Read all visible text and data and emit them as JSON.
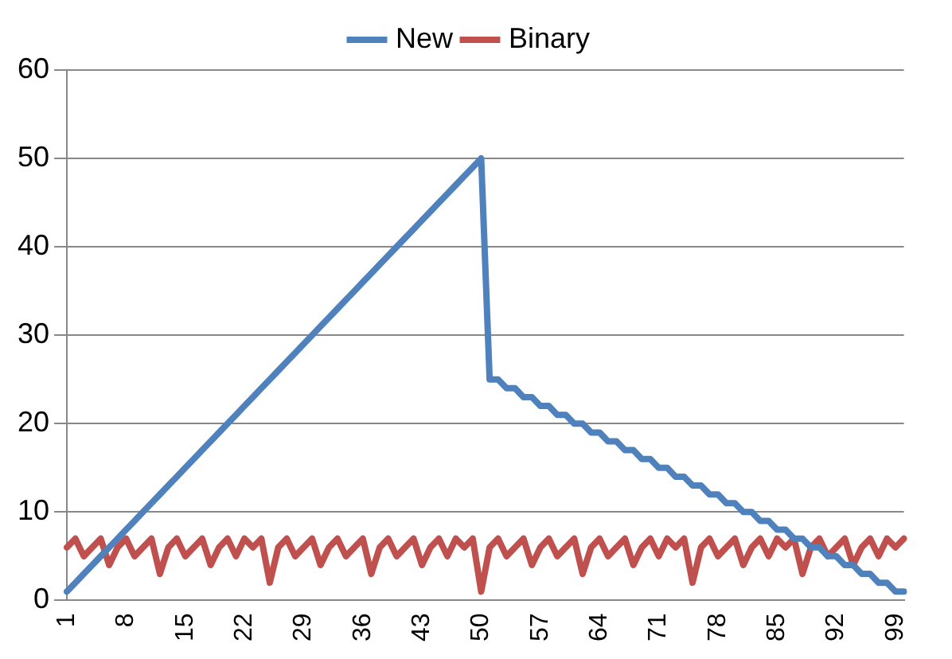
{
  "chart_data": {
    "type": "line",
    "categories": [
      "1",
      null,
      null,
      null,
      null,
      null,
      null,
      "8",
      null,
      null,
      null,
      null,
      null,
      null,
      "15",
      null,
      null,
      null,
      null,
      null,
      null,
      "22",
      null,
      null,
      null,
      null,
      null,
      null,
      "29",
      null,
      null,
      null,
      null,
      null,
      null,
      "36",
      null,
      null,
      null,
      null,
      null,
      null,
      "43",
      null,
      null,
      null,
      null,
      null,
      null,
      "50",
      null,
      null,
      null,
      null,
      null,
      null,
      "57",
      null,
      null,
      null,
      null,
      null,
      null,
      "64",
      null,
      null,
      null,
      null,
      null,
      null,
      "71",
      null,
      null,
      null,
      null,
      null,
      null,
      "78",
      null,
      null,
      null,
      null,
      null,
      null,
      "85",
      null,
      null,
      null,
      null,
      null,
      null,
      "92",
      null,
      null,
      null,
      null,
      null,
      null,
      "99",
      null
    ],
    "series": [
      {
        "name": "New",
        "color": "#4f81bd",
        "values": [
          1,
          2,
          3,
          4,
          5,
          6,
          7,
          8,
          9,
          10,
          11,
          12,
          13,
          14,
          15,
          16,
          17,
          18,
          19,
          20,
          21,
          22,
          23,
          24,
          25,
          26,
          27,
          28,
          29,
          30,
          31,
          32,
          33,
          34,
          35,
          36,
          37,
          38,
          39,
          40,
          41,
          42,
          43,
          44,
          45,
          46,
          47,
          48,
          49,
          50,
          25,
          25,
          24,
          24,
          23,
          23,
          22,
          22,
          21,
          21,
          20,
          20,
          19,
          19,
          18,
          18,
          17,
          17,
          16,
          16,
          15,
          15,
          14,
          14,
          13,
          13,
          12,
          12,
          11,
          11,
          10,
          10,
          9,
          9,
          8,
          8,
          7,
          7,
          6,
          6,
          5,
          5,
          4,
          4,
          3,
          3,
          2,
          2,
          1,
          1
        ]
      },
      {
        "name": "Binary",
        "color": "#c0504d",
        "values": [
          6,
          7,
          5,
          6,
          7,
          4,
          6,
          7,
          5,
          6,
          7,
          3,
          6,
          7,
          5,
          6,
          7,
          4,
          6,
          7,
          5,
          7,
          6,
          7,
          2,
          6,
          7,
          5,
          6,
          7,
          4,
          6,
          7,
          5,
          6,
          7,
          3,
          6,
          7,
          5,
          6,
          7,
          4,
          6,
          7,
          5,
          7,
          6,
          7,
          1,
          6,
          7,
          5,
          6,
          7,
          4,
          6,
          7,
          5,
          6,
          7,
          3,
          6,
          7,
          5,
          6,
          7,
          4,
          6,
          7,
          5,
          7,
          6,
          7,
          2,
          6,
          7,
          5,
          6,
          7,
          4,
          6,
          7,
          5,
          7,
          6,
          7,
          3,
          6,
          7,
          5,
          6,
          7,
          4,
          6,
          7,
          5,
          7,
          6,
          7
        ]
      }
    ],
    "ylim": [
      0,
      60
    ],
    "yticks": [
      0,
      10,
      20,
      30,
      40,
      50,
      60
    ],
    "grid": "y",
    "legend": "top",
    "marker": "none",
    "line_style": "solid"
  }
}
